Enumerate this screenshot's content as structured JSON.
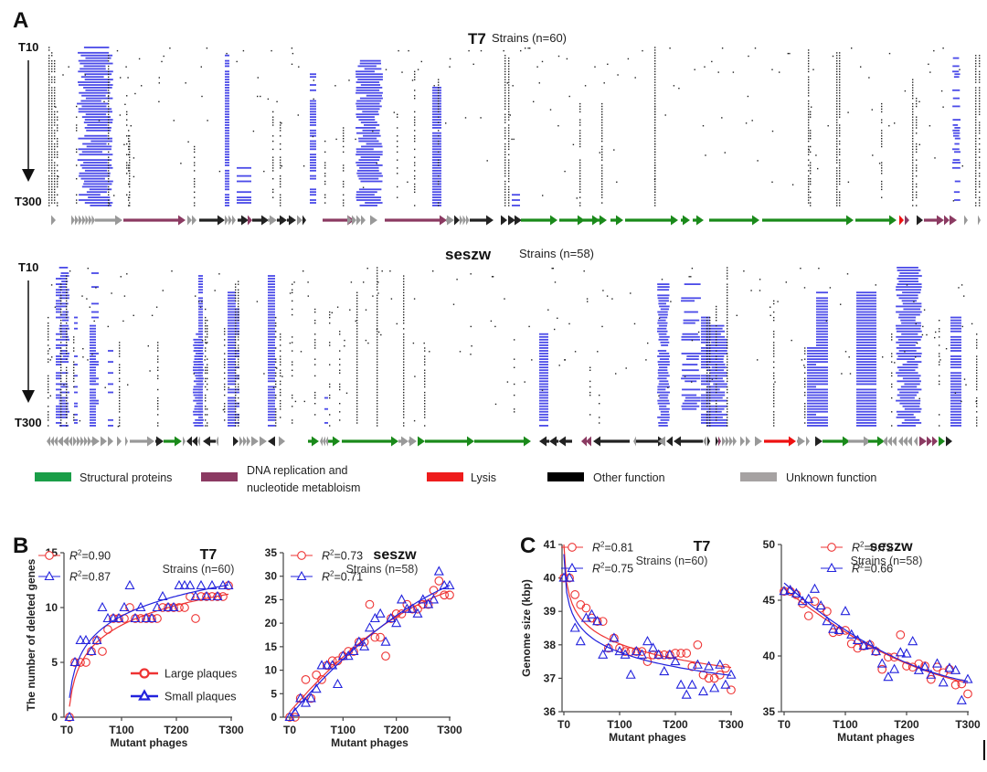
{
  "panels": {
    "a": "A",
    "b": "B",
    "c": "C"
  },
  "heatmaps": [
    {
      "id": "t7",
      "title": "T7",
      "subtitle": "Strains (n=60)",
      "top_label": "T10",
      "bottom_label": "T300",
      "rows": 60
    },
    {
      "id": "seszw",
      "title": "seszw",
      "subtitle": "Strains (n=58)",
      "top_label": "T10",
      "bottom_label": "T300",
      "rows": 58
    }
  ],
  "legend": [
    {
      "label": "Structural proteins",
      "color": "#1a9e48"
    },
    {
      "label": "DNA replication and",
      "label2": "nucleotide metabloism",
      "color": "#8b3a62"
    },
    {
      "label": "Lysis",
      "color": "#ee1c1c"
    },
    {
      "label": "Other function",
      "color": "#000000"
    },
    {
      "label": "Unknown function",
      "color": "#a6a2a2"
    }
  ],
  "colors": {
    "deletion": "#4a4ae8",
    "mutation": "#222222",
    "large": "#ee3333",
    "small": "#2222dd",
    "structural": "#1a8a1a",
    "dna": "#8b3a62",
    "lysis": "#ee1111",
    "other": "#222222",
    "unknown": "#999999"
  },
  "chart_data": [
    {
      "id": "b-t7",
      "type": "scatter",
      "title": "T7",
      "subtitle": "Strains (n=60)",
      "xlabel": "Mutant phages",
      "ylabel": "The number of deleted genes",
      "xticks": [
        "T0",
        "T100",
        "T200",
        "T300"
      ],
      "xlim": [
        0,
        300
      ],
      "yticks": [
        0,
        5,
        10,
        15
      ],
      "ylim": [
        0,
        15
      ],
      "legend_labels": [
        "Large plaques",
        "Small plaques"
      ],
      "series": [
        {
          "name": "Large plaques",
          "r2": "=0.90",
          "marker": "circle",
          "x": [
            5,
            15,
            25,
            35,
            45,
            55,
            65,
            75,
            85,
            95,
            105,
            115,
            125,
            135,
            145,
            155,
            165,
            175,
            185,
            195,
            205,
            215,
            225,
            235,
            245,
            255,
            265,
            275,
            285,
            295
          ],
          "y": [
            0,
            5,
            5,
            5,
            6,
            7,
            6,
            8,
            9,
            9,
            9,
            10,
            9,
            9,
            9,
            9,
            9,
            10,
            10,
            10,
            10,
            10,
            11,
            9,
            11,
            11,
            11,
            11,
            11,
            12
          ]
        },
        {
          "name": "Small plaques",
          "r2": "=0.87",
          "marker": "triangle",
          "x": [
            5,
            15,
            25,
            35,
            45,
            55,
            65,
            75,
            85,
            95,
            105,
            115,
            125,
            135,
            145,
            155,
            165,
            175,
            185,
            195,
            205,
            215,
            225,
            235,
            245,
            255,
            265,
            275,
            285,
            295
          ],
          "y": [
            0,
            5,
            7,
            7,
            6,
            7,
            10,
            9,
            9,
            9,
            10,
            12,
            9,
            10,
            9,
            9,
            10,
            11,
            10,
            10,
            12,
            12,
            12,
            11,
            12,
            11,
            12,
            11,
            12,
            12
          ]
        }
      ]
    },
    {
      "id": "b-seszw",
      "type": "scatter",
      "title": "seszw",
      "subtitle": "Strains (n=58)",
      "xlabel": "Mutant phages",
      "ylabel": "",
      "xticks": [
        "T0",
        "T100",
        "T200",
        "T300"
      ],
      "xlim": [
        0,
        300
      ],
      "yticks": [
        0,
        5,
        10,
        15,
        20,
        25,
        30,
        35
      ],
      "ylim": [
        0,
        35
      ],
      "series": [
        {
          "name": "Large plaques",
          "r2": "=0.73",
          "marker": "circle",
          "x": [
            0,
            10,
            20,
            30,
            40,
            50,
            60,
            70,
            80,
            90,
            100,
            110,
            120,
            130,
            140,
            150,
            160,
            170,
            180,
            190,
            200,
            210,
            220,
            230,
            240,
            250,
            260,
            270,
            280,
            290,
            300
          ],
          "y": [
            0,
            0,
            4,
            8,
            4,
            9,
            8,
            11,
            12,
            12,
            13,
            14,
            14,
            16,
            16,
            24,
            17,
            17,
            13,
            21,
            22,
            22,
            24,
            23,
            23,
            24,
            24,
            27,
            29,
            26,
            26
          ]
        },
        {
          "name": "Small plaques",
          "r2": "=0.71",
          "marker": "triangle",
          "x": [
            0,
            10,
            20,
            30,
            40,
            50,
            60,
            70,
            80,
            90,
            100,
            110,
            120,
            130,
            140,
            150,
            160,
            170,
            180,
            190,
            200,
            210,
            220,
            230,
            240,
            250,
            260,
            270,
            280,
            290,
            300
          ],
          "y": [
            0,
            1,
            4,
            3,
            4,
            6,
            11,
            11,
            11,
            7,
            13,
            13,
            14,
            16,
            15,
            19,
            21,
            22,
            16,
            21,
            20,
            25,
            23,
            23,
            22,
            25,
            24,
            25,
            31,
            28,
            28
          ]
        }
      ]
    },
    {
      "id": "c-t7",
      "type": "scatter",
      "title": "T7",
      "subtitle": "Strains (n=60)",
      "xlabel": "Mutant phages",
      "ylabel": "Genome size (kbp)",
      "xticks": [
        "T0",
        "T100",
        "T200",
        "T300"
      ],
      "xlim": [
        0,
        300
      ],
      "yticks": [
        36,
        37,
        38,
        39,
        40,
        41
      ],
      "ylim": [
        36,
        41
      ],
      "series": [
        {
          "name": "Large plaques",
          "r2": "=0.81",
          "marker": "circle",
          "x": [
            0,
            10,
            20,
            30,
            40,
            50,
            60,
            70,
            80,
            90,
            100,
            110,
            120,
            130,
            140,
            150,
            160,
            170,
            180,
            190,
            200,
            210,
            220,
            230,
            240,
            250,
            260,
            270,
            280,
            290,
            300
          ],
          "y": [
            40.0,
            40.0,
            39.5,
            39.2,
            39.1,
            38.8,
            38.7,
            38.7,
            37.9,
            38.2,
            37.9,
            37.8,
            37.8,
            37.8,
            37.8,
            37.5,
            37.7,
            37.7,
            37.7,
            37.7,
            37.75,
            37.75,
            37.75,
            37.35,
            38.0,
            37.1,
            37.0,
            37.0,
            37.1,
            37.3,
            36.65
          ]
        },
        {
          "name": "Small plaques",
          "r2": "=0.75",
          "marker": "triangle",
          "x": [
            0,
            10,
            20,
            30,
            40,
            50,
            60,
            70,
            80,
            90,
            100,
            110,
            120,
            130,
            140,
            150,
            160,
            170,
            180,
            190,
            200,
            210,
            220,
            230,
            240,
            250,
            260,
            270,
            280,
            290,
            300
          ],
          "y": [
            40.0,
            40.0,
            38.5,
            38.1,
            38.8,
            38.9,
            38.7,
            37.7,
            37.9,
            38.2,
            37.8,
            37.7,
            37.1,
            37.8,
            37.7,
            38.1,
            37.9,
            37.7,
            37.2,
            37.7,
            37.5,
            36.8,
            36.5,
            36.8,
            37.4,
            36.6,
            37.35,
            36.7,
            37.4,
            36.8,
            37.1
          ]
        }
      ]
    },
    {
      "id": "c-seszw",
      "type": "scatter",
      "title": "seszw",
      "subtitle": "Strains (n=58)",
      "xlabel": "Mutant phages",
      "ylabel": "",
      "xticks": [
        "T0",
        "T100",
        "T200",
        "T300"
      ],
      "xlim": [
        0,
        300
      ],
      "yticks": [
        35,
        40,
        45,
        50
      ],
      "ylim": [
        35,
        50
      ],
      "series": [
        {
          "name": "Large plaques",
          "r2": "=0.72",
          "marker": "circle",
          "x": [
            0,
            10,
            20,
            30,
            40,
            50,
            60,
            70,
            80,
            90,
            100,
            110,
            120,
            130,
            140,
            150,
            160,
            170,
            180,
            190,
            200,
            210,
            220,
            230,
            240,
            250,
            260,
            270,
            280,
            290,
            300
          ],
          "y": [
            45.8,
            45.8,
            45.5,
            44.7,
            43.6,
            44.9,
            44.3,
            44.0,
            42.1,
            42.2,
            42.3,
            41.1,
            40.7,
            40.9,
            41.0,
            40.4,
            38.8,
            39.9,
            39.9,
            41.9,
            39.1,
            39.0,
            39.3,
            39.1,
            37.9,
            39.0,
            38.5,
            38.8,
            37.4,
            37.5,
            36.6
          ]
        },
        {
          "name": "Small plaques",
          "r2": "=0.66",
          "marker": "triangle",
          "x": [
            0,
            10,
            20,
            30,
            40,
            50,
            60,
            70,
            80,
            90,
            100,
            110,
            120,
            130,
            140,
            150,
            160,
            170,
            180,
            190,
            200,
            210,
            220,
            230,
            240,
            250,
            260,
            270,
            280,
            290,
            300
          ],
          "y": [
            45.8,
            45.9,
            45.6,
            44.9,
            45.1,
            46.0,
            44.5,
            43.1,
            42.4,
            42.3,
            44.0,
            41.9,
            41.4,
            40.9,
            41.0,
            40.4,
            39.3,
            38.1,
            38.8,
            40.3,
            40.2,
            41.3,
            38.7,
            39.0,
            38.3,
            39.3,
            37.6,
            38.9,
            38.7,
            36.0,
            37.9
          ]
        }
      ]
    }
  ]
}
